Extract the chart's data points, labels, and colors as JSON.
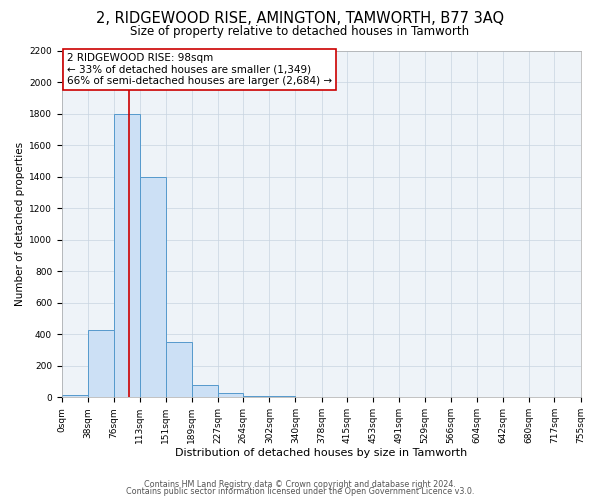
{
  "title1": "2, RIDGEWOOD RISE, AMINGTON, TAMWORTH, B77 3AQ",
  "title2": "Size of property relative to detached houses in Tamworth",
  "xlabel": "Distribution of detached houses by size in Tamworth",
  "ylabel": "Number of detached properties",
  "footer1": "Contains HM Land Registry data © Crown copyright and database right 2024.",
  "footer2": "Contains public sector information licensed under the Open Government Licence v3.0.",
  "bin_edges": [
    0,
    38,
    76,
    113,
    151,
    189,
    227,
    264,
    302,
    340,
    378,
    415,
    453,
    491,
    529,
    566,
    604,
    642,
    680,
    717,
    755
  ],
  "bin_counts": [
    15,
    430,
    1800,
    1400,
    350,
    80,
    25,
    10,
    5,
    0,
    0,
    0,
    0,
    0,
    0,
    0,
    0,
    0,
    0,
    0
  ],
  "property_size": 98,
  "annotation_title": "2 RIDGEWOOD RISE: 98sqm",
  "annotation_line1": "← 33% of detached houses are smaller (1,349)",
  "annotation_line2": "66% of semi-detached houses are larger (2,684) →",
  "bar_color": "#cce0f5",
  "bar_edge_color": "#5599cc",
  "vline_color": "#cc0000",
  "annotation_box_color": "#ffffff",
  "annotation_box_edge": "#cc0000",
  "grid_color": "#c8d4e0",
  "bg_color": "#eef3f8",
  "ylim": [
    0,
    2200
  ],
  "yticks": [
    0,
    200,
    400,
    600,
    800,
    1000,
    1200,
    1400,
    1600,
    1800,
    2000,
    2200
  ],
  "xtick_labels": [
    "0sqm",
    "38sqm",
    "76sqm",
    "113sqm",
    "151sqm",
    "189sqm",
    "227sqm",
    "264sqm",
    "302sqm",
    "340sqm",
    "378sqm",
    "415sqm",
    "453sqm",
    "491sqm",
    "529sqm",
    "566sqm",
    "604sqm",
    "642sqm",
    "680sqm",
    "717sqm",
    "755sqm"
  ],
  "title1_fontsize": 10.5,
  "title2_fontsize": 8.5,
  "xlabel_fontsize": 8,
  "ylabel_fontsize": 7.5,
  "tick_fontsize": 6.5,
  "annotation_fontsize": 7.5,
  "footer_fontsize": 5.8
}
